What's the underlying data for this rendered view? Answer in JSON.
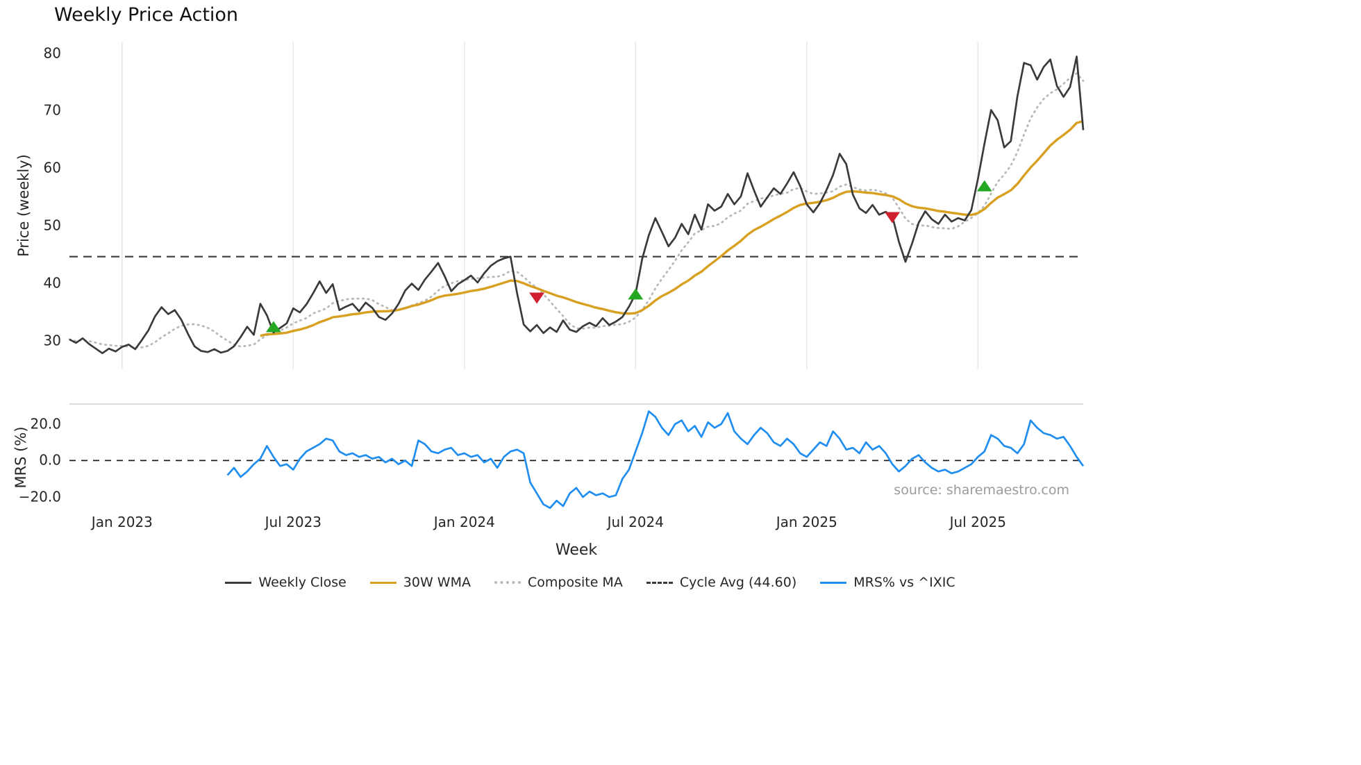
{
  "source_note": "source: sharemaestro.com",
  "chart_data": {
    "type": "line",
    "title": "Weekly Price Action",
    "xlabel": "Week",
    "x_axis": {
      "unit": "week",
      "total_weeks": 155,
      "tick_weeks": [
        8,
        34,
        60,
        86,
        112,
        138
      ],
      "tick_labels": [
        "Jan 2023",
        "Jul 2023",
        "Jan 2024",
        "Jul 2024",
        "Jan 2025",
        "Jul 2025"
      ]
    },
    "panels": {
      "price": {
        "ylabel": "Price (weekly)",
        "ylim": [
          25,
          82
        ],
        "yticks": [
          30,
          40,
          50,
          60,
          70,
          80
        ],
        "grid": "vertical-only"
      },
      "mrs": {
        "ylabel": "MRS (%)",
        "ylim": [
          -28,
          31
        ],
        "yticks": [
          20,
          0,
          -20
        ],
        "ytick_labels": [
          "20.0",
          "0.0",
          "−20.0"
        ],
        "zero_line": "dashed"
      }
    },
    "legend_order": [
      "weekly_close",
      "wma_30w",
      "composite_ma",
      "cycle_avg",
      "mrs_pct"
    ],
    "series": {
      "weekly_close": {
        "label": "Weekly Close",
        "panel": "price",
        "color": "#3a3a3a",
        "style": "solid",
        "start_week": 0,
        "values": [
          30.2,
          29.6,
          30.4,
          29.4,
          28.6,
          27.8,
          28.6,
          28.1,
          28.9,
          29.3,
          28.5,
          30.1,
          31.8,
          34.2,
          35.8,
          34.6,
          35.3,
          33.6,
          31.2,
          29.0,
          28.2,
          28.0,
          28.5,
          27.9,
          28.2,
          29.0,
          30.6,
          32.4,
          31.0,
          36.4,
          34.4,
          31.4,
          32.2,
          33.0,
          35.6,
          34.9,
          36.3,
          38.2,
          40.3,
          38.3,
          39.8,
          35.3,
          35.9,
          36.4,
          35.1,
          36.6,
          35.7,
          34.1,
          33.6,
          34.7,
          36.4,
          38.7,
          39.9,
          38.8,
          40.6,
          42.0,
          43.5,
          41.2,
          38.6,
          39.8,
          40.5,
          41.3,
          40.1,
          41.7,
          43.0,
          43.8,
          44.3,
          44.6,
          38.2,
          32.8,
          31.6,
          32.7,
          31.3,
          32.3,
          31.5,
          33.5,
          31.9,
          31.5,
          32.5,
          33.1,
          32.5,
          33.9,
          32.7,
          33.3,
          34.1,
          35.9,
          38.1,
          44.2,
          48.3,
          51.3,
          48.9,
          46.4,
          47.9,
          50.3,
          48.5,
          51.9,
          49.3,
          53.7,
          52.6,
          53.3,
          55.5,
          53.7,
          55.1,
          59.1,
          56.1,
          53.3,
          54.9,
          56.5,
          55.5,
          57.3,
          59.3,
          56.9,
          53.7,
          52.3,
          53.9,
          56.2,
          58.8,
          62.5,
          60.7,
          55.4,
          53.0,
          52.2,
          53.6,
          51.9,
          52.4,
          51.6,
          47.2,
          43.7,
          46.9,
          50.5,
          52.5,
          51.1,
          50.3,
          51.9,
          50.7,
          51.3,
          50.9,
          52.7,
          58.1,
          64.3,
          70.1,
          68.3,
          63.6,
          64.7,
          72.5,
          78.3,
          77.9,
          75.4,
          77.6,
          78.9,
          74.3,
          72.4,
          74.1,
          79.4,
          66.6
        ]
      },
      "wma_30w": {
        "label": "30W WMA",
        "panel": "price",
        "color": "#d7a021",
        "style": "solid",
        "derived_from": "weekly_close",
        "derivation": "30-week linearly-weighted moving average",
        "window": 30
      },
      "composite_ma": {
        "label": "Composite MA",
        "panel": "price",
        "color": "#b8b8b8",
        "style": "dotted",
        "derived_from": "weekly_close",
        "derivation": "9-week rolling mean (expanding at start)",
        "window": 9
      },
      "cycle_avg": {
        "label": "Cycle Avg (44.60)",
        "panel": "price",
        "color": "#3a3a3a",
        "style": "dashed",
        "constant": 44.6
      },
      "mrs_pct": {
        "label": "MRS% vs ^IXIC",
        "panel": "mrs",
        "color": "#1f8ef0",
        "style": "solid",
        "start_week": 24,
        "values": [
          -8,
          -4,
          -9,
          -6,
          -2,
          1,
          8,
          2,
          -3,
          -2,
          -5,
          1,
          5,
          7,
          9,
          12,
          11,
          5,
          3,
          4,
          2,
          3,
          1,
          2,
          -1,
          1,
          -2,
          0,
          -3,
          11,
          9,
          5,
          4,
          6,
          7,
          3,
          4,
          2,
          3,
          -1,
          1,
          -4,
          2,
          5,
          6,
          4,
          -12,
          -18,
          -24,
          -26,
          -22,
          -25,
          -18,
          -15,
          -20,
          -17,
          -19,
          -18,
          -20,
          -19,
          -10,
          -5,
          5,
          15,
          27,
          24,
          18,
          14,
          20,
          22,
          16,
          19,
          13,
          21,
          18,
          20,
          26,
          16,
          12,
          9,
          14,
          18,
          15,
          10,
          8,
          12,
          9,
          4,
          2,
          6,
          10,
          8,
          16,
          12,
          6,
          7,
          4,
          10,
          6,
          8,
          4,
          -2,
          -6,
          -3,
          1,
          3,
          -1,
          -4,
          -6,
          -5,
          -7,
          -6,
          -4,
          -2,
          2,
          5,
          14,
          12,
          8,
          7,
          4,
          9,
          22,
          18,
          15,
          14,
          12,
          13,
          8,
          2,
          -3
        ]
      }
    },
    "markers": {
      "buy": {
        "shape": "triangle-up",
        "color": "#24a824",
        "points": [
          {
            "week": 31,
            "price": 32.3
          },
          {
            "week": 86,
            "price": 38.0
          },
          {
            "week": 139,
            "price": 56.8
          }
        ]
      },
      "sell": {
        "shape": "triangle-down",
        "color": "#cf2030",
        "points": [
          {
            "week": 71,
            "price": 37.5
          },
          {
            "week": 125,
            "price": 51.5
          }
        ]
      }
    }
  }
}
